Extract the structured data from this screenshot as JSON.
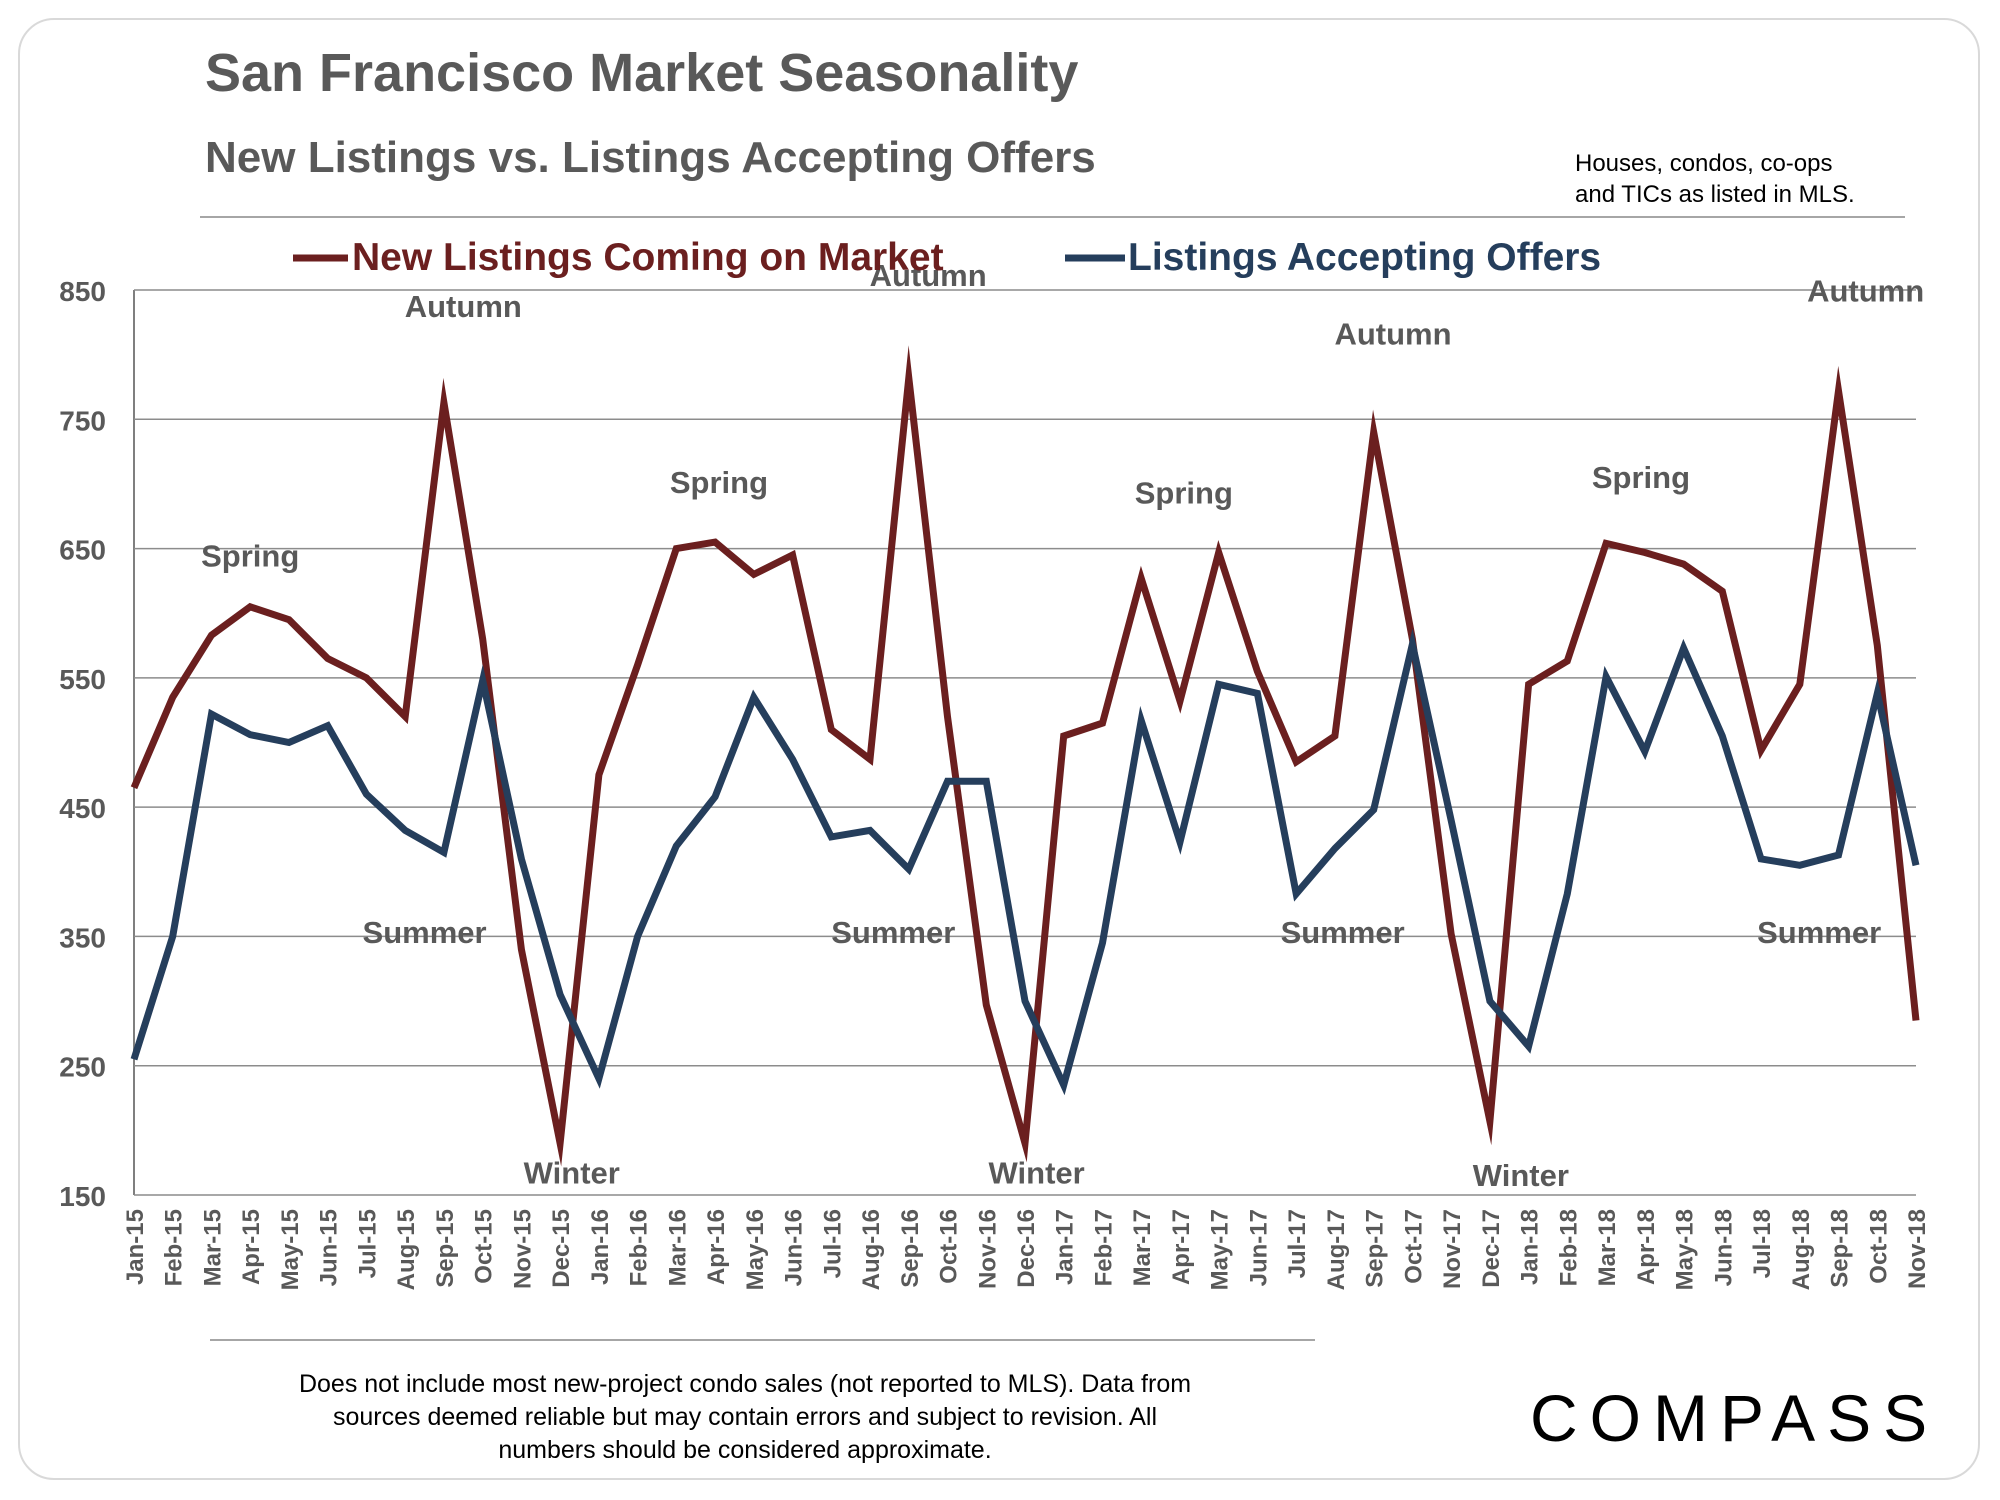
{
  "title": "San Francisco Market Seasonality",
  "subtitle": "New Listings vs. Listings Accepting Offers",
  "note_lines": [
    "Houses, condos, co-ops",
    "and TICs as listed in MLS."
  ],
  "footer_lines": [
    "Does not include most new-project condo sales (not reported to MLS). Data from",
    "sources deemed reliable but may contain errors and subject to revision.  All",
    "numbers should be considered approximate."
  ],
  "logo_text": "COMPASS",
  "chart_data": {
    "type": "line",
    "title": "San Francisco Market Seasonality",
    "xlabel": "",
    "ylabel": "",
    "ylim": [
      150,
      850
    ],
    "yticks": [
      150,
      250,
      350,
      450,
      550,
      650,
      750,
      850
    ],
    "grid": true,
    "legend_position": "top",
    "categories": [
      "Jan-15",
      "Feb-15",
      "Mar-15",
      "Apr-15",
      "May-15",
      "Jun-15",
      "Jul-15",
      "Aug-15",
      "Sep-15",
      "Oct-15",
      "Nov-15",
      "Dec-15",
      "Jan-16",
      "Feb-16",
      "Mar-16",
      "Apr-16",
      "May-16",
      "Jun-16",
      "Jul-16",
      "Aug-16",
      "Sep-16",
      "Oct-16",
      "Nov-16",
      "Dec-16",
      "Jan-17",
      "Feb-17",
      "Mar-17",
      "Apr-17",
      "May-17",
      "Jun-17",
      "Jul-17",
      "Aug-17",
      "Sep-17",
      "Oct-17",
      "Nov-17",
      "Dec-17",
      "Jan-18",
      "Feb-18",
      "Mar-18",
      "Apr-18",
      "May-18",
      "Jun-18",
      "Jul-18",
      "Aug-18",
      "Sep-18",
      "Oct-18",
      "Nov-18"
    ],
    "series": [
      {
        "name": "New Listings Coming on Market",
        "color": "#6b1f1f",
        "values": [
          465,
          535,
          583,
          605,
          595,
          565,
          550,
          520,
          763,
          580,
          340,
          190,
          475,
          560,
          650,
          655,
          630,
          645,
          510,
          487,
          782,
          520,
          297,
          190,
          505,
          515,
          627,
          532,
          647,
          555,
          485,
          505,
          740,
          580,
          352,
          207,
          545,
          563,
          654,
          647,
          638,
          617,
          494,
          545,
          772,
          575,
          285
        ]
      },
      {
        "name": "Listings Accepting Offers",
        "color": "#253e5c",
        "values": [
          255,
          350,
          522,
          506,
          500,
          513,
          460,
          432,
          415,
          548,
          410,
          305,
          240,
          350,
          420,
          458,
          535,
          487,
          427,
          432,
          402,
          470,
          470,
          300,
          235,
          345,
          517,
          423,
          545,
          538,
          383,
          418,
          448,
          576,
          440,
          300,
          265,
          383,
          551,
          493,
          573,
          505,
          410,
          405,
          413,
          538,
          405
        ]
      }
    ],
    "annotations": [
      {
        "text": "Spring",
        "x_index": 3,
        "y": 636
      },
      {
        "text": "Autumn",
        "x_index": 8.5,
        "y": 829
      },
      {
        "text": "Summer",
        "x_index": 7.5,
        "y": 345
      },
      {
        "text": "Winter",
        "x_index": 11.3,
        "y": 159
      },
      {
        "text": "Spring",
        "x_index": 15.1,
        "y": 693
      },
      {
        "text": "Autumn",
        "x_index": 20.5,
        "y": 853
      },
      {
        "text": "Summer",
        "x_index": 19.6,
        "y": 345
      },
      {
        "text": "Winter",
        "x_index": 23.3,
        "y": 159
      },
      {
        "text": "Spring",
        "x_index": 27.1,
        "y": 685
      },
      {
        "text": "Autumn",
        "x_index": 32.5,
        "y": 808
      },
      {
        "text": "Summer",
        "x_index": 31.2,
        "y": 345
      },
      {
        "text": "Winter",
        "x_index": 35.8,
        "y": 157
      },
      {
        "text": "Spring",
        "x_index": 38.9,
        "y": 697
      },
      {
        "text": "Autumn",
        "x_index": 44.7,
        "y": 841
      },
      {
        "text": "Summer",
        "x_index": 43.5,
        "y": 345
      }
    ]
  }
}
